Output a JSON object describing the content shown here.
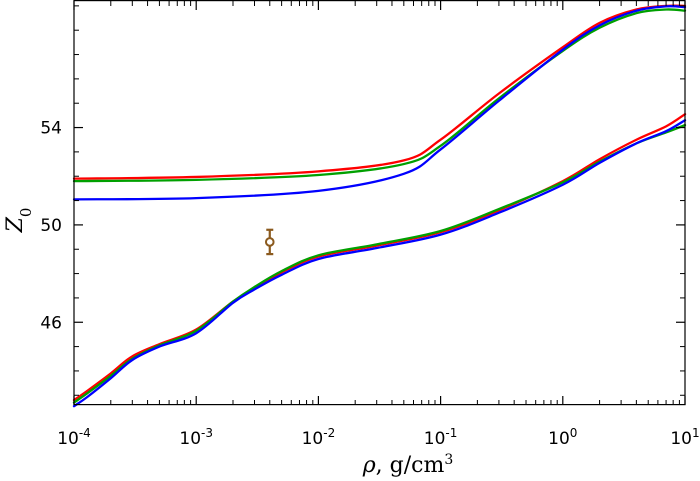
{
  "chart_data": {
    "type": "line",
    "xscale": "log",
    "xlim": [
      0.0001,
      10
    ],
    "ylim": [
      42.6,
      59.2
    ],
    "xlabel": {
      "symbol": "ρ",
      "text": ", g/cm",
      "sup": "3"
    },
    "ylabel": {
      "base": "Z",
      "sub": "0"
    },
    "x_ticks": [
      {
        "value": 0.0001,
        "base": "10",
        "exp": "-4"
      },
      {
        "value": 0.001,
        "base": "10",
        "exp": "-3"
      },
      {
        "value": 0.01,
        "base": "10",
        "exp": "-2"
      },
      {
        "value": 0.1,
        "base": "10",
        "exp": "-1"
      },
      {
        "value": 1,
        "base": "10",
        "exp": "0"
      },
      {
        "value": 10,
        "base": "10",
        "exp": "1"
      }
    ],
    "y_ticks": [
      {
        "value": 46,
        "label": "46"
      },
      {
        "value": 50,
        "label": "50"
      },
      {
        "value": 54,
        "label": "54"
      }
    ],
    "grid": false,
    "series": [
      {
        "color": "#ff0000",
        "x": [
          0.0001,
          0.001,
          0.01,
          0.05,
          0.1,
          0.3,
          1,
          2,
          4,
          7,
          10
        ],
        "y": [
          51.9,
          51.97,
          52.2,
          52.65,
          53.5,
          55.4,
          57.3,
          58.3,
          58.85,
          59.0,
          59.0
        ]
      },
      {
        "color": "#00a000",
        "x": [
          0.0001,
          0.001,
          0.01,
          0.05,
          0.1,
          0.3,
          1,
          2,
          4,
          7,
          10
        ],
        "y": [
          51.8,
          51.85,
          52.05,
          52.5,
          53.25,
          55.2,
          57.15,
          58.1,
          58.7,
          58.85,
          58.8
        ]
      },
      {
        "color": "#0000ff",
        "x": [
          0.0001,
          0.001,
          0.01,
          0.05,
          0.1,
          0.3,
          1,
          2,
          4,
          7,
          10
        ],
        "y": [
          51.05,
          51.1,
          51.4,
          52.1,
          53.1,
          55.1,
          57.2,
          58.2,
          58.8,
          58.98,
          58.95
        ]
      },
      {
        "color": "#ff0000",
        "x": [
          0.0001,
          0.00013,
          0.0002,
          0.0003,
          0.0005,
          0.001,
          0.002,
          0.003,
          0.005,
          0.01,
          0.03,
          0.1,
          0.3,
          1,
          2,
          4,
          7,
          10
        ],
        "y": [
          42.8,
          43.2,
          43.9,
          44.6,
          45.1,
          45.7,
          46.85,
          47.4,
          48.05,
          48.7,
          49.15,
          49.7,
          50.6,
          51.8,
          52.7,
          53.5,
          54.05,
          54.55
        ]
      },
      {
        "color": "#00a000",
        "x": [
          0.0001,
          0.00013,
          0.0002,
          0.0003,
          0.0005,
          0.001,
          0.002,
          0.003,
          0.005,
          0.01,
          0.03,
          0.1,
          0.3,
          1,
          2,
          4,
          7,
          10
        ],
        "y": [
          42.7,
          43.1,
          43.8,
          44.5,
          45.05,
          45.65,
          46.85,
          47.45,
          48.1,
          48.75,
          49.2,
          49.75,
          50.65,
          51.75,
          52.6,
          53.35,
          53.8,
          54.1
        ]
      },
      {
        "color": "#0000ff",
        "x": [
          0.0001,
          0.00013,
          0.0002,
          0.0003,
          0.0005,
          0.001,
          0.002,
          0.003,
          0.005,
          0.01,
          0.03,
          0.1,
          0.3,
          1,
          2,
          4,
          7,
          10
        ],
        "y": [
          42.55,
          42.95,
          43.7,
          44.45,
          45.0,
          45.55,
          46.8,
          47.35,
          47.95,
          48.6,
          49.05,
          49.6,
          50.5,
          51.65,
          52.55,
          53.35,
          53.85,
          54.3
        ]
      }
    ],
    "points": [
      {
        "color": "#8b5a1e",
        "x": 0.004,
        "y": 49.3,
        "yerr": 0.5
      }
    ]
  }
}
